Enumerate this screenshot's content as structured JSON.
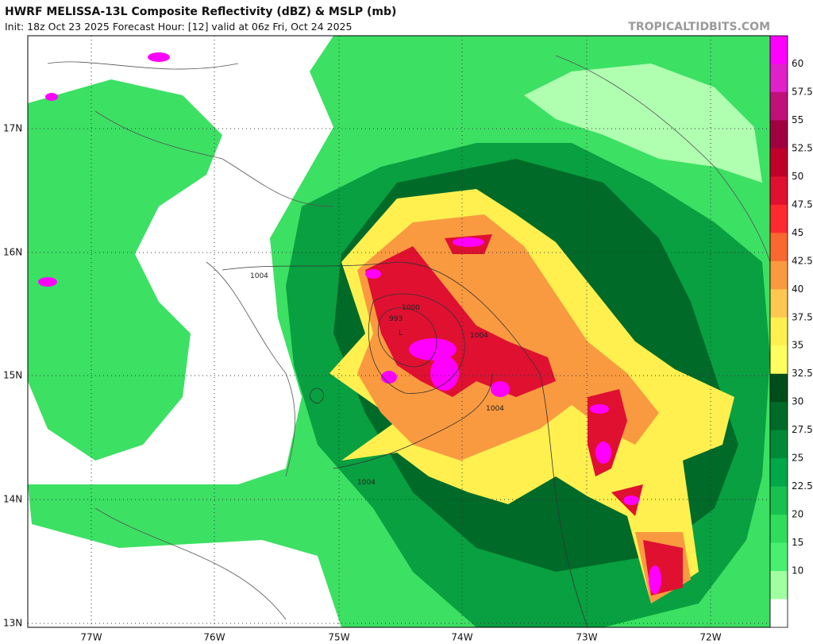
{
  "header": {
    "title": "HWRF MELISSA-13L Composite Reflectivity (dBZ) & MSLP (mb)",
    "subtitle": "Init: 18z Oct 23 2025   Forecast Hour: [12]   valid at 06z Fri, Oct 24 2025",
    "site": "TROPICALTIDBITS.COM"
  },
  "map": {
    "lat_labels": [
      "17N",
      "16N",
      "15N",
      "14N",
      "13N"
    ],
    "lon_labels": [
      "77W",
      "76W",
      "75W",
      "74W",
      "73W",
      "72W"
    ],
    "contour_labels": [
      "1004",
      "1000",
      "993",
      "L",
      "1004",
      "1004",
      "1004"
    ]
  },
  "colorbar": {
    "labels": [
      "60",
      "57.5",
      "55",
      "52.5",
      "50",
      "47.5",
      "45",
      "42.5",
      "40",
      "37.5",
      "35",
      "32.5",
      "30",
      "27.5",
      "25",
      "22.5",
      "20",
      "15",
      "10"
    ],
    "colors": [
      "#ff00ff",
      "#e020c8",
      "#c0107a",
      "#a00040",
      "#c00028",
      "#e01030",
      "#ff2a30",
      "#f86830",
      "#fa9a40",
      "#fcc850",
      "#fff050",
      "#ffff60",
      "#004c1a",
      "#006a28",
      "#008a38",
      "#00a848",
      "#18c050",
      "#30dc5c",
      "#48f070",
      "#a0ffa0",
      "#ffffff"
    ]
  }
}
